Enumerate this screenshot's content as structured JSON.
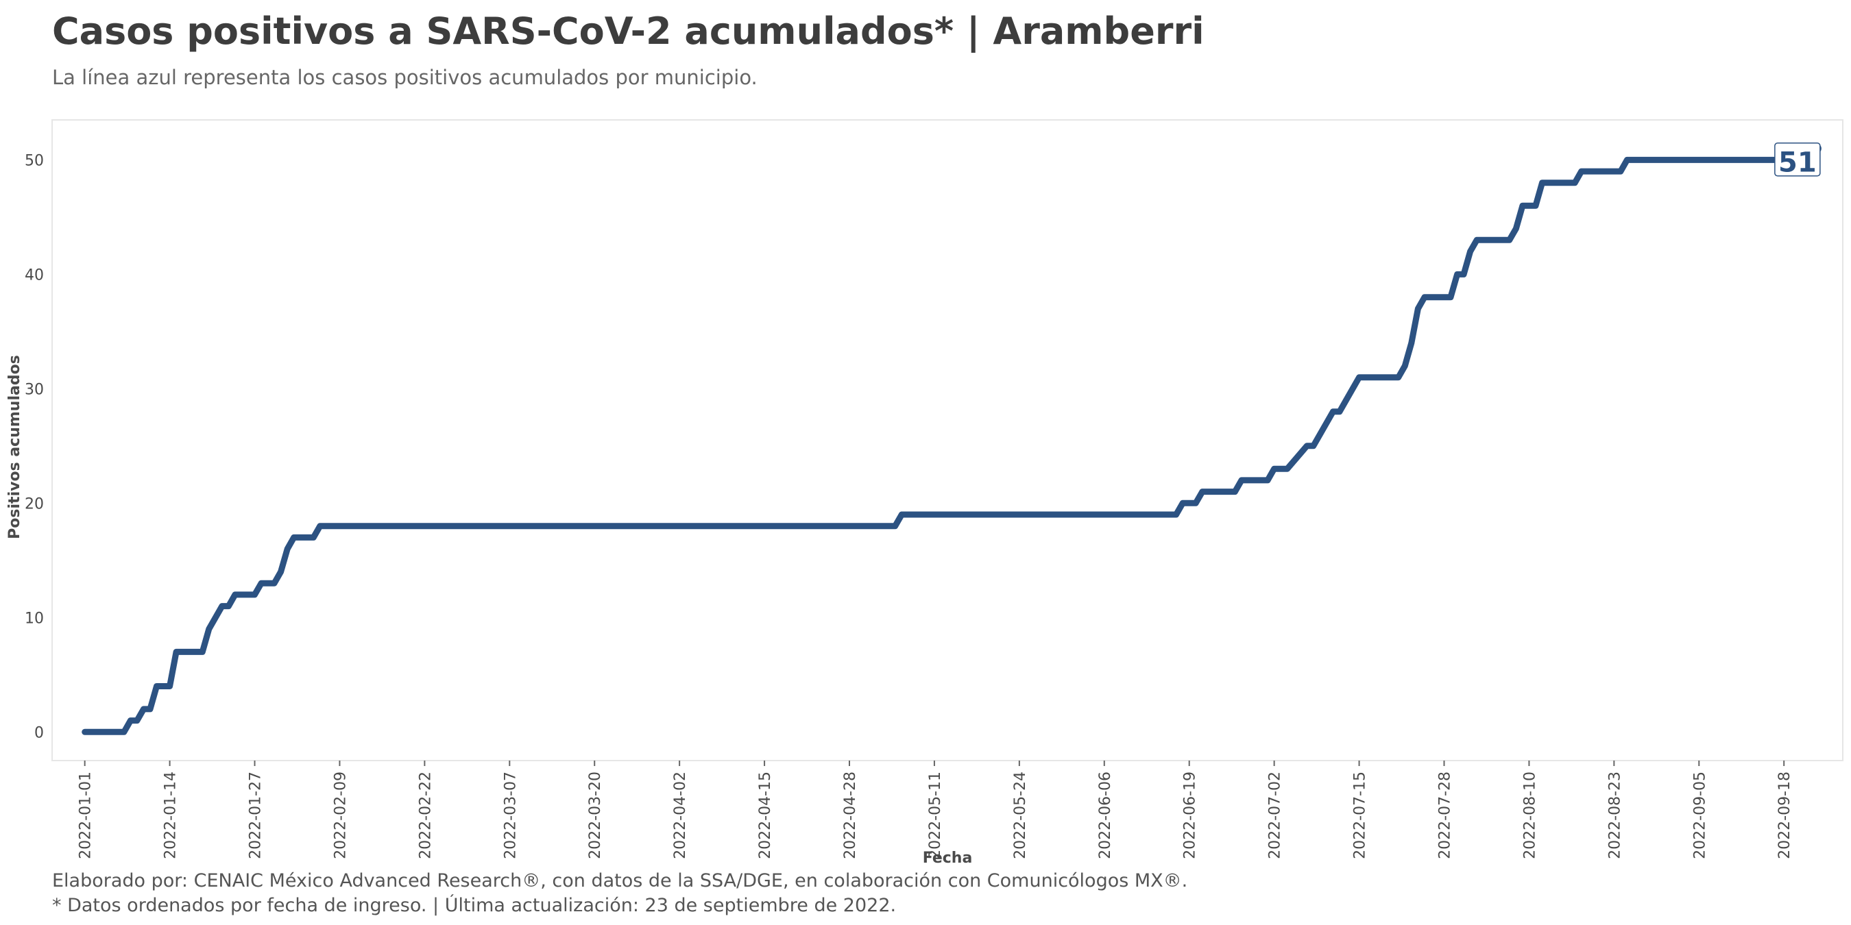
{
  "header": {
    "title": "Casos positivos a SARS-CoV-2 acumulados* | Aramberri",
    "subtitle": "La línea azul representa los casos positivos acumulados por municipio."
  },
  "caption": {
    "line1": "Elaborado por: CENAIC México Advanced Research®, con datos de la SSA/DGE, en colaboración con Comunicólogos MX®.",
    "line2": "* Datos ordenados por fecha de ingreso. | Última actualización: 23 de septiembre de 2022."
  },
  "colors": {
    "line": "#2c5282",
    "panel_border": "#e6e6e6",
    "text": "#3d3d3d"
  },
  "chart_data": {
    "type": "line",
    "title": "Casos positivos a SARS-CoV-2 acumulados* | Aramberri",
    "subtitle": "La línea azul representa los casos positivos acumulados por municipio.",
    "xlabel": "Fecha",
    "ylabel": "Positivos acumulados",
    "x_type": "date",
    "xlim": [
      "2021-12-27",
      "2022-09-27"
    ],
    "ylim": [
      -2.5,
      53.5
    ],
    "x_ticks": [
      "2022-01-01",
      "2022-01-14",
      "2022-01-27",
      "2022-02-09",
      "2022-02-22",
      "2022-03-07",
      "2022-03-20",
      "2022-04-02",
      "2022-04-15",
      "2022-04-28",
      "2022-05-11",
      "2022-05-24",
      "2022-06-06",
      "2022-06-19",
      "2022-07-02",
      "2022-07-15",
      "2022-07-28",
      "2022-08-10",
      "2022-08-23",
      "2022-09-05",
      "2022-09-18"
    ],
    "y_ticks": [
      0,
      10,
      20,
      30,
      40,
      50
    ],
    "grid": false,
    "series": [
      {
        "points": [
          [
            "2022-01-01",
            0
          ],
          [
            "2022-01-07",
            0
          ],
          [
            "2022-01-08",
            1
          ],
          [
            "2022-01-09",
            1
          ],
          [
            "2022-01-10",
            2
          ],
          [
            "2022-01-11",
            2
          ],
          [
            "2022-01-12",
            4
          ],
          [
            "2022-01-14",
            4
          ],
          [
            "2022-01-15",
            7
          ],
          [
            "2022-01-19",
            7
          ],
          [
            "2022-01-20",
            9
          ],
          [
            "2022-01-22",
            11
          ],
          [
            "2022-01-23",
            11
          ],
          [
            "2022-01-24",
            12
          ],
          [
            "2022-01-27",
            12
          ],
          [
            "2022-01-28",
            13
          ],
          [
            "2022-01-30",
            13
          ],
          [
            "2022-01-31",
            14
          ],
          [
            "2022-02-01",
            16
          ],
          [
            "2022-02-02",
            17
          ],
          [
            "2022-02-05",
            17
          ],
          [
            "2022-02-06",
            18
          ],
          [
            "2022-05-05",
            18
          ],
          [
            "2022-05-06",
            19
          ],
          [
            "2022-06-17",
            19
          ],
          [
            "2022-06-18",
            20
          ],
          [
            "2022-06-20",
            20
          ],
          [
            "2022-06-21",
            21
          ],
          [
            "2022-06-26",
            21
          ],
          [
            "2022-06-27",
            22
          ],
          [
            "2022-07-01",
            22
          ],
          [
            "2022-07-02",
            23
          ],
          [
            "2022-07-04",
            23
          ],
          [
            "2022-07-07",
            25
          ],
          [
            "2022-07-08",
            25
          ],
          [
            "2022-07-11",
            28
          ],
          [
            "2022-07-12",
            28
          ],
          [
            "2022-07-13",
            29
          ],
          [
            "2022-07-15",
            31
          ],
          [
            "2022-07-21",
            31
          ],
          [
            "2022-07-22",
            32
          ],
          [
            "2022-07-23",
            34
          ],
          [
            "2022-07-24",
            37
          ],
          [
            "2022-07-25",
            38
          ],
          [
            "2022-07-29",
            38
          ],
          [
            "2022-07-30",
            40
          ],
          [
            "2022-07-31",
            40
          ],
          [
            "2022-08-01",
            42
          ],
          [
            "2022-08-02",
            43
          ],
          [
            "2022-08-07",
            43
          ],
          [
            "2022-08-08",
            44
          ],
          [
            "2022-08-09",
            46
          ],
          [
            "2022-08-11",
            46
          ],
          [
            "2022-08-12",
            48
          ],
          [
            "2022-08-17",
            48
          ],
          [
            "2022-08-18",
            49
          ],
          [
            "2022-08-24",
            49
          ],
          [
            "2022-08-25",
            50
          ],
          [
            "2022-09-20",
            50
          ],
          [
            "2022-09-21",
            51
          ],
          [
            "2022-09-23",
            51
          ]
        ]
      }
    ],
    "end_label": {
      "date": "2022-09-23",
      "value": 51,
      "text": "51"
    }
  }
}
